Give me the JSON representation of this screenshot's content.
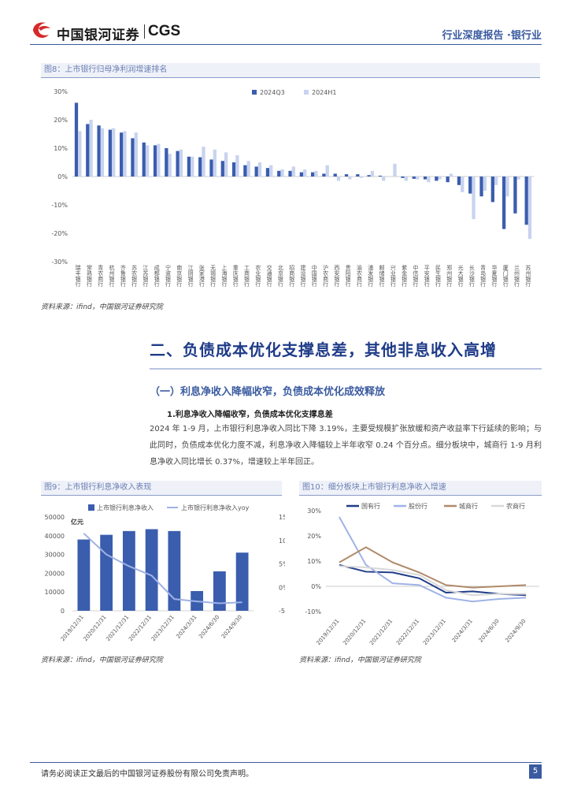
{
  "header": {
    "logo_cn": "中国银河证券",
    "logo_en": "CGS",
    "report_type": "行业深度报告 ·银行业"
  },
  "fig8": {
    "title": "图8：上市银行归母净利润增速排名",
    "source": "资料来源：ifind，中国银河证券研究院"
  },
  "section": {
    "heading": "二、负债成本优化支撑息差，其他非息收入高增",
    "sub_heading": "（一）利息净收入降幅收窄，负债成本优化成效释放",
    "sub3": "1.利息净收入降幅收窄，负债成本优化支撑息差",
    "paragraph": "2024 年 1-9 月，上市银行利息净收入同比下降 3.19%，主要受规模扩张放缓和资产收益率下行延续的影响；与此同时，负债成本优化力度不减，利息净收入降幅较上半年收窄 0.24 个百分点。细分板块中，城商行 1-9 月利息净收入同比增长 0.37%，增速较上半年回正。"
  },
  "fig9": {
    "title": "图9：上市银行利息净收入表现",
    "source": "资料来源：ifind，中国银河证券研究院",
    "unit": "亿元"
  },
  "fig10": {
    "title": "图10：细分板块上市银行利息净收入增速",
    "source": "资料来源：ifind，中国银河证券研究院"
  },
  "chart_data": [
    {
      "type": "bar",
      "title": "上市银行归母净利润增速排名",
      "ylim": [
        -30,
        30
      ],
      "ytick_labels": [
        "30%",
        "20%",
        "10%",
        "0%",
        "-10%",
        "-20%",
        "-30%"
      ],
      "legend": [
        "2024Q3",
        "2024H1"
      ],
      "categories": [
        "瑞丰银行",
        "常熟银行",
        "青农商行",
        "杭州银行",
        "齐鲁银行",
        "苏农银行",
        "江苏银行",
        "成都银行",
        "宁波银行",
        "南京银行",
        "江阴银行",
        "张家港行",
        "无锡银行",
        "上海银行",
        "重庆银行",
        "工商银行",
        "农业银行",
        "交通银行",
        "北京银行",
        "招商银行",
        "建设银行",
        "中国银行",
        "沪农商行",
        "西安银行",
        "贵阳银行",
        "渝农商行",
        "浦发银行",
        "邮储银行",
        "兴业银行",
        "紫金银行",
        "中信银行",
        "平安银行",
        "民生银行",
        "郑州银行",
        "光大银行",
        "长沙银行",
        "青岛银行",
        "华夏银行",
        "厦门银行",
        "兰州银行",
        "苏州银行"
      ],
      "series": [
        {
          "name": "2024Q3",
          "values": [
            26,
            18.5,
            18,
            16.5,
            15.5,
            13.5,
            12,
            11,
            10,
            9,
            7,
            6.8,
            6,
            5.5,
            5,
            4,
            3.5,
            3,
            2,
            2,
            1.5,
            1.5,
            1,
            1,
            0.8,
            0.8,
            0.5,
            0.3,
            0,
            -0.5,
            -0.8,
            -1,
            -1.5,
            -2,
            -3,
            -6,
            -7,
            -9,
            -18.5,
            -13,
            -17
          ]
        },
        {
          "name": "2024H1",
          "values": [
            16,
            20,
            17,
            17,
            16,
            15.5,
            11,
            11.5,
            8,
            9.5,
            7,
            10.5,
            9.5,
            8.5,
            7.5,
            5.5,
            5,
            4,
            2.5,
            3.5,
            2.5,
            2,
            4,
            -1.5,
            -1,
            -0.5,
            2,
            -1.5,
            4.5,
            -1.5,
            -1,
            -2,
            -1,
            1,
            -5.5,
            -15,
            -5,
            -3,
            -7,
            -1,
            -22
          ]
        }
      ]
    },
    {
      "type": "bar",
      "title": "上市银行利息净收入表现",
      "categories": [
        "2019/12/31",
        "2020/12/31",
        "2021/12/31",
        "2022/12/31",
        "2023/12/31",
        "2024/3/31",
        "2024/6/30",
        "2024/9/30"
      ],
      "series": [
        {
          "name": "上市银行利息净收入",
          "axis": "left",
          "type": "bar",
          "values": [
            38000,
            40500,
            42500,
            43500,
            42500,
            10500,
            21000,
            31000
          ]
        },
        {
          "name": "上市银行利息净收入yoy",
          "axis": "right",
          "type": "line",
          "values": [
            11.5,
            7,
            4.5,
            2.5,
            -2.5,
            -3,
            -3.4,
            -3.2
          ]
        }
      ],
      "ylim_left": [
        0,
        50000
      ],
      "ytick_left": [
        "0",
        "10000",
        "20000",
        "30000",
        "40000",
        "50000"
      ],
      "ylim_right": [
        -5,
        15
      ],
      "ytick_right": [
        "-5%",
        "0%",
        "5%",
        "10%",
        "15%"
      ]
    },
    {
      "type": "line",
      "title": "细分板块上市银行利息净收入增速",
      "categories": [
        "2019/12/31",
        "2020/12/31",
        "2021/12/31",
        "2022/12/31",
        "2023/12/31",
        "2024/3/31",
        "2024/6/30",
        "2024/9/30"
      ],
      "series": [
        {
          "name": "国有行",
          "color": "#1f3c88",
          "values": [
            8.5,
            5.8,
            5.5,
            3.2,
            -2.5,
            -2,
            -3,
            -3.5
          ]
        },
        {
          "name": "股份行",
          "color": "#9fb2e6",
          "values": [
            27.5,
            8.5,
            1.2,
            0.5,
            -4.5,
            -6,
            -5,
            -4.5
          ]
        },
        {
          "name": "城商行",
          "color": "#b08a6a",
          "values": [
            9.5,
            15.5,
            9.5,
            5.5,
            0.5,
            -0.5,
            0,
            0.5
          ]
        },
        {
          "name": "农商行",
          "color": "#d8d8d8",
          "values": [
            8,
            7.5,
            6.5,
            4.5,
            -1.5,
            -3.5,
            -3,
            -3
          ]
        }
      ],
      "ylim": [
        -10,
        30
      ],
      "ytick_labels": [
        "30%",
        "20%",
        "10%",
        "0%",
        "-10%"
      ]
    }
  ],
  "footer": {
    "disclaimer": "请务必阅读正文最后的中国银河证券股份有限公司免责声明。",
    "page": "5"
  }
}
